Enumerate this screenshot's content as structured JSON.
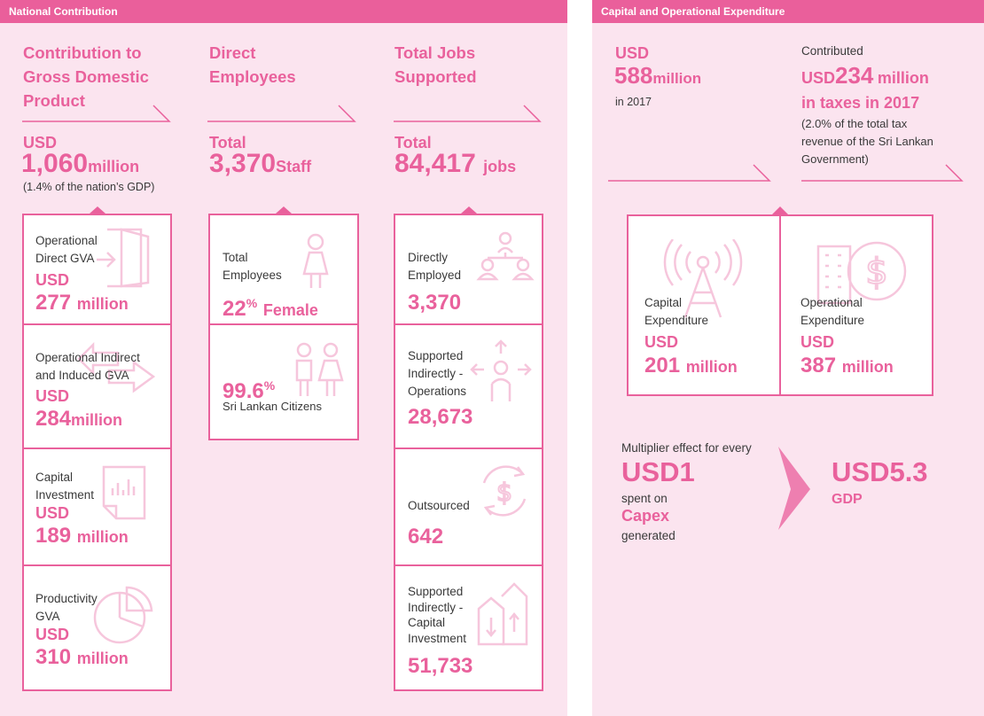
{
  "left_panel": {
    "header": "National Contribution",
    "gdp": {
      "heading_lines": [
        "Contribution to",
        "Gross Domestic",
        "Product"
      ],
      "prefix": "USD",
      "value": "1,060",
      "unit": "million",
      "note": "(1.4% of the nation’s GDP)",
      "items": [
        {
          "label_lines": [
            "Operational",
            "Direct GVA"
          ],
          "prefix": "USD",
          "value": "277",
          "unit": "million",
          "icon": "exit-door-icon"
        },
        {
          "label_lines": [
            "Operational Indirect",
            "and Induced GVA"
          ],
          "prefix": "USD",
          "value": "284",
          "unit": "million",
          "icon": "double-arrow-icon"
        },
        {
          "label_lines": [
            "Capital",
            "Investment"
          ],
          "prefix": "USD",
          "value": "189",
          "unit": "million",
          "icon": "document-chart-icon"
        },
        {
          "label_lines": [
            "Productivity",
            "GVA"
          ],
          "prefix": "USD",
          "value": "310",
          "unit": "million",
          "icon": "pie-chart-icon"
        }
      ]
    },
    "employees": {
      "heading_lines": [
        "Direct",
        "Employees"
      ],
      "prefix": "Total",
      "value": "3,370",
      "unit": "Staff",
      "items": [
        {
          "label_lines": [
            "Total",
            "Employees"
          ],
          "value": "22",
          "value_suffix": "%",
          "unit": "Female",
          "icon": "woman-icon"
        },
        {
          "value": "99.6",
          "value_suffix": "%",
          "label": "Sri Lankan Citizens",
          "icon": "people-icon"
        }
      ]
    },
    "jobs": {
      "heading_lines": [
        "Total Jobs",
        "Supported"
      ],
      "prefix": "Total",
      "value": "84,417",
      "unit": "jobs",
      "items": [
        {
          "label_lines": [
            "Directly",
            "Employed"
          ],
          "value": "3,370",
          "icon": "team-hierarchy-icon"
        },
        {
          "label_lines": [
            "Supported",
            "Indirectly -",
            "Operations"
          ],
          "value": "28,673",
          "icon": "person-arrows-icon"
        },
        {
          "label_lines": [
            "Outsourced"
          ],
          "value": "642",
          "icon": "dollar-cycle-icon"
        },
        {
          "label_lines": [
            "Supported",
            "Indirectly -",
            "Capital",
            "Investment"
          ],
          "value": "51,733",
          "icon": "building-arrows-icon"
        }
      ]
    }
  },
  "right_panel": {
    "header": "Capital and Operational Expenditure",
    "total": {
      "prefix": "USD",
      "value": "588",
      "unit": "million",
      "note": "in 2017"
    },
    "taxes": {
      "intro": "Contributed",
      "prefix": "USD",
      "value": "234",
      "unit": "million",
      "line2": "in taxes in 2017",
      "note_lines": [
        "(2.0% of the total tax",
        "revenue of the Sri Lankan",
        "Government)"
      ]
    },
    "items": [
      {
        "label_lines": [
          "Capital",
          "Expenditure"
        ],
        "prefix": "USD",
        "value": "201",
        "unit": "million",
        "icon": "radio-tower-icon"
      },
      {
        "label_lines": [
          "Operational",
          "Expenditure"
        ],
        "prefix": "USD",
        "value": "387",
        "unit": "million",
        "icon": "building-dollar-icon"
      }
    ],
    "multiplier": {
      "intro": "Multiplier effect for every",
      "input": "USD1",
      "spent_on": "spent on",
      "category": "Capex",
      "generated": "generated",
      "output": "USD5.3",
      "output_label": "GDP"
    }
  },
  "colors": {
    "accent": "#e9619c",
    "header": "#ea5f9b",
    "panel": "#fbe4ef",
    "ghost": "#f6c6dc"
  }
}
